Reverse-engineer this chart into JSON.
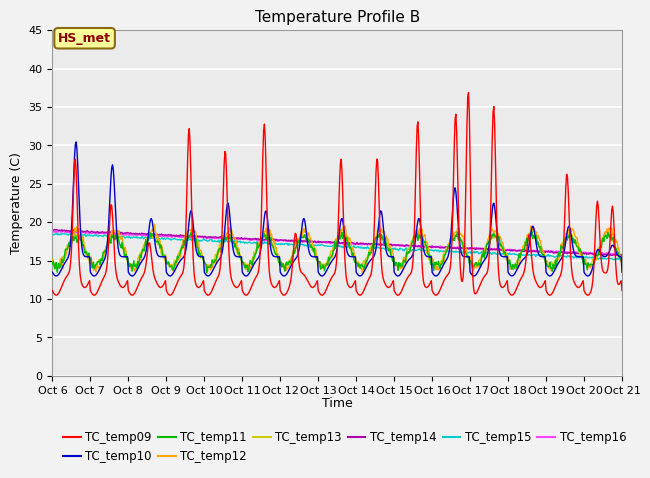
{
  "title": "Temperature Profile B",
  "xlabel": "Time",
  "ylabel": "Temperature (C)",
  "ylim": [
    0,
    45
  ],
  "x_tick_labels": [
    "Oct 6",
    "Oct 7",
    "Oct 8",
    "Oct 9",
    "Oct 10",
    "Oct 11",
    "Oct 12",
    "Oct 13",
    "Oct 14",
    "Oct 15",
    "Oct 16",
    "Oct 17",
    "Oct 18",
    "Oct 19",
    "Oct 20",
    "Oct 21"
  ],
  "annotation_text": "HS_met",
  "annotation_color": "#8B0000",
  "annotation_bg": "#FFFF99",
  "annotation_border": "#8B6914",
  "series_colors": {
    "TC_temp09": "#FF0000",
    "TC_temp10": "#0000CC",
    "TC_temp11": "#00BB00",
    "TC_temp12": "#FFA500",
    "TC_temp13": "#CCCC00",
    "TC_temp14": "#AA00AA",
    "TC_temp15": "#00CCCC",
    "TC_temp16": "#FF44FF"
  },
  "background_color": "#EBEBEB",
  "grid_color": "#FFFFFF",
  "title_fontsize": 11,
  "axis_fontsize": 9,
  "legend_fontsize": 8.5,
  "tick_fontsize": 8
}
